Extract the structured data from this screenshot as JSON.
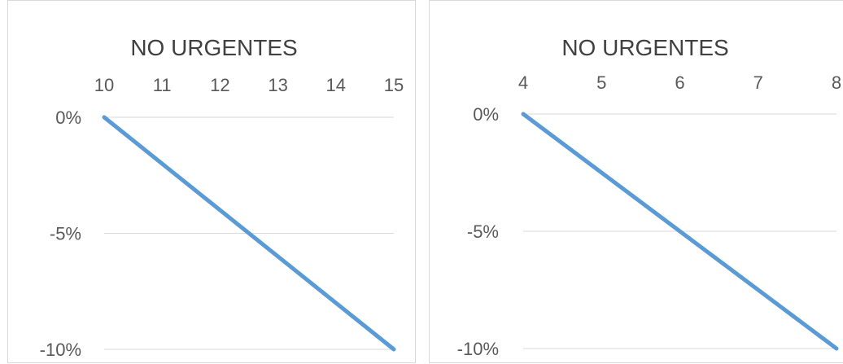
{
  "colors": {
    "series": "#5b9bd5",
    "grid": "#d9d9d9",
    "text": "#595959"
  },
  "chart_data": [
    {
      "type": "line",
      "title": "NO URGENTES",
      "xlabel": "",
      "ylabel": "",
      "x_axis_position": "top",
      "grid": "horizontal",
      "legend": "none",
      "xlim": [
        10,
        15
      ],
      "ylim": [
        -0.1,
        0
      ],
      "x_ticks": [
        10,
        11,
        12,
        13,
        14,
        15
      ],
      "y_ticks": [
        0,
        -0.05,
        -0.1
      ],
      "y_tick_labels": [
        "0%",
        "-5%",
        "-10%"
      ],
      "series": [
        {
          "x": [
            10,
            15
          ],
          "y": [
            0,
            -0.1
          ]
        }
      ]
    },
    {
      "type": "line",
      "title": "NO URGENTES",
      "xlabel": "",
      "ylabel": "",
      "x_axis_position": "top",
      "grid": "horizontal",
      "legend": "none",
      "xlim": [
        4,
        8
      ],
      "ylim": [
        -0.1,
        0
      ],
      "x_ticks": [
        4,
        5,
        6,
        7,
        8
      ],
      "y_ticks": [
        0,
        -0.05,
        -0.1
      ],
      "y_tick_labels": [
        "0%",
        "-5%",
        "-10%"
      ],
      "series": [
        {
          "x": [
            4,
            8
          ],
          "y": [
            0,
            -0.1
          ]
        }
      ]
    }
  ]
}
